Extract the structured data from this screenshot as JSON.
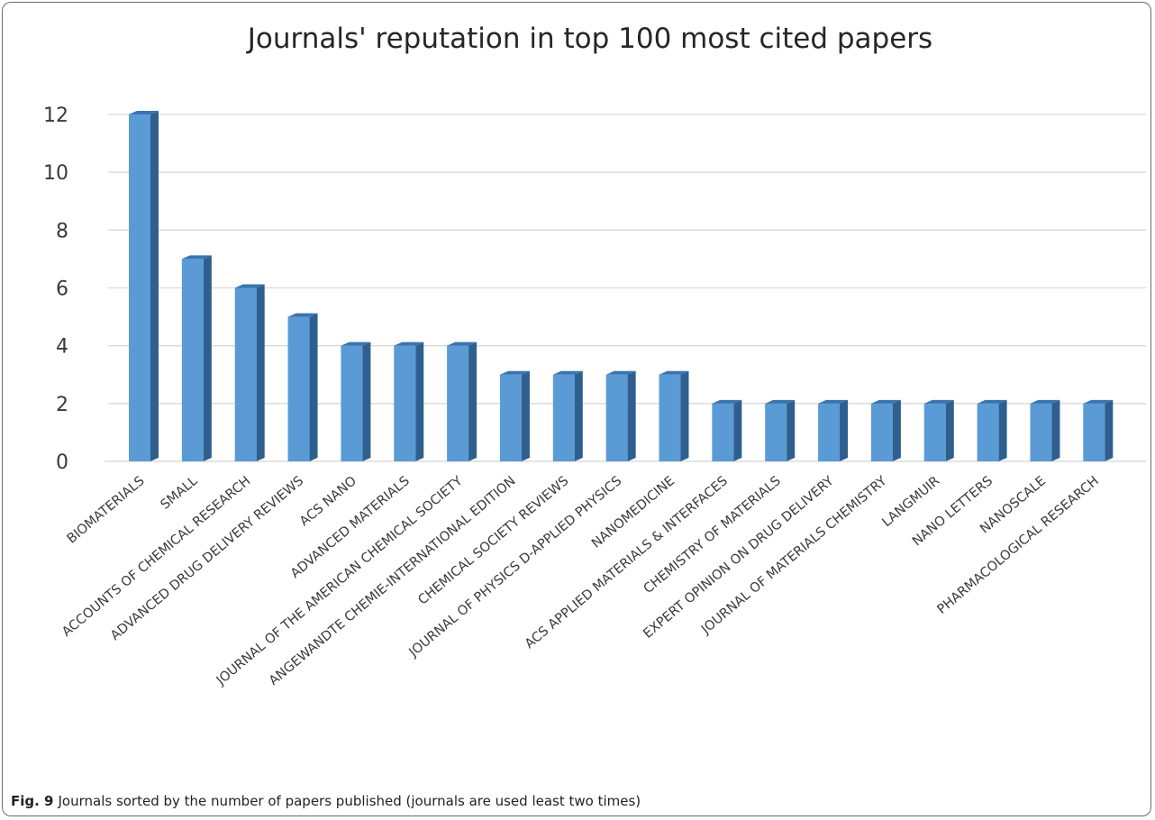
{
  "chart_data": {
    "type": "bar",
    "title": "Journals' reputation in top 100 most cited papers",
    "xlabel": "",
    "ylabel": "",
    "ylim": [
      0,
      12
    ],
    "yticks": [
      0,
      2,
      4,
      6,
      8,
      10,
      12
    ],
    "grid": true,
    "legend": "none",
    "bar_color": "#5b9bd5",
    "categories": [
      "BIOMATERIALS",
      "SMALL",
      "ACCOUNTS OF CHEMICAL RESEARCH",
      "ADVANCED DRUG DELIVERY REVIEWS",
      "ACS NANO",
      "ADVANCED MATERIALS",
      "JOURNAL OF THE AMERICAN CHEMICAL SOCIETY",
      "ANGEWANDTE CHEMIE-INTERNATIONAL EDITION",
      "CHEMICAL SOCIETY REVIEWS",
      "JOURNAL OF PHYSICS D-APPLIED PHYSICS",
      "NANOMEDICINE",
      "ACS APPLIED MATERIALS & INTERFACES",
      "CHEMISTRY OF MATERIALS",
      "EXPERT OPINION ON DRUG DELIVERY",
      "JOURNAL OF MATERIALS CHEMISTRY",
      "LANGMUIR",
      "NANO LETTERS",
      "NANOSCALE",
      "PHARMACOLOGICAL RESEARCH"
    ],
    "values": [
      12,
      7,
      6,
      5,
      4,
      4,
      4,
      3,
      3,
      3,
      3,
      2,
      2,
      2,
      2,
      2,
      2,
      2,
      2
    ]
  },
  "caption": {
    "label": "Fig. 9",
    "text": "Journals sorted by the number of papers published (journals are used least two times)"
  }
}
